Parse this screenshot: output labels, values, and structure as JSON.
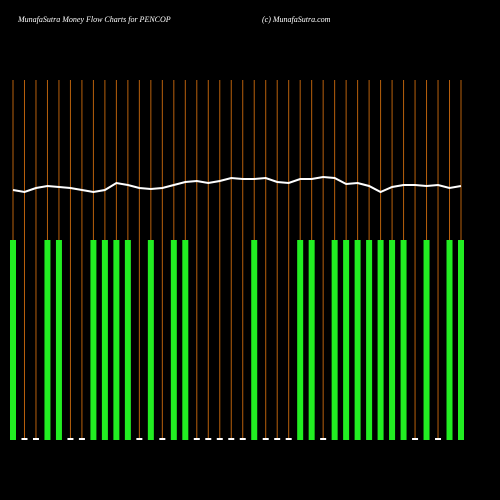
{
  "chart_data": {
    "type": "bar",
    "title": "MunafaSutra  Money Flow  Charts for PENCOP",
    "subtitle": "(c) MunafaSutra.com",
    "categories": [
      null,
      null,
      null,
      null,
      null,
      null,
      null,
      null,
      null,
      null,
      null,
      null,
      null,
      null,
      null,
      null,
      null,
      null,
      null,
      null,
      null,
      null,
      null,
      null,
      null,
      null,
      null,
      null,
      null,
      null,
      null,
      null,
      null,
      null,
      null,
      null,
      null,
      null,
      null,
      null
    ],
    "ylim": [
      0,
      180
    ],
    "series": [
      {
        "type": "bar",
        "color": "#22ee22",
        "small_color": "#ffffff",
        "values": [
          100,
          1,
          1,
          100,
          100,
          1,
          1,
          100,
          100,
          100,
          100,
          1,
          100,
          1,
          100,
          100,
          1,
          1,
          1,
          1,
          1,
          100,
          1,
          1,
          1,
          100,
          100,
          1,
          100,
          100,
          100,
          100,
          100,
          100,
          100,
          1,
          100,
          1,
          100,
          100
        ]
      },
      {
        "type": "line",
        "color": "#ffffff",
        "values": [
          125,
          124,
          126,
          127,
          126.5,
          126,
          125,
          124,
          125,
          128.5,
          127.5,
          126,
          125.5,
          126,
          127.5,
          129,
          129.5,
          128.5,
          129.5,
          131,
          130.5,
          130.5,
          131,
          129,
          128.5,
          130.5,
          130.5,
          131.5,
          131,
          128,
          128.5,
          127,
          124,
          126.5,
          127.5,
          127.5,
          127,
          127.5,
          126,
          127
        ]
      }
    ],
    "gridline_color": "#b8600c"
  }
}
